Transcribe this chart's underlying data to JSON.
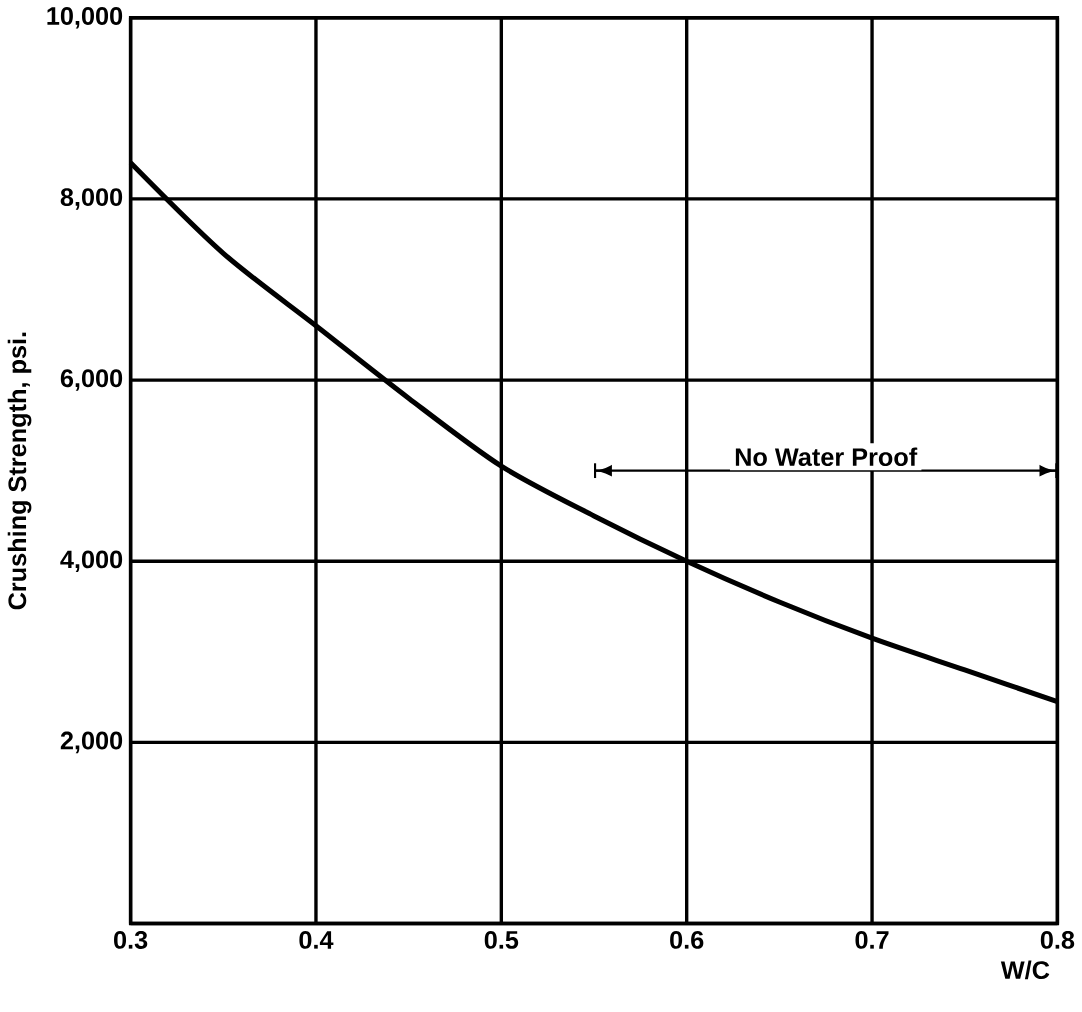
{
  "chart_data": {
    "type": "line",
    "xlabel": "W/C",
    "ylabel": "Crushing Strength, psi.",
    "x": [
      0.3,
      0.35,
      0.4,
      0.45,
      0.5,
      0.55,
      0.6,
      0.65,
      0.7,
      0.75,
      0.8
    ],
    "series": [
      {
        "color": "#000000",
        "values": [
          8400,
          7400,
          6600,
          5800,
          5050,
          4500,
          4000,
          3550,
          3150,
          2800,
          2450
        ]
      },
      {
        "type": "line",
        "color": "#000000",
        "x": [
          0.55,
          0.8
        ],
        "values": [
          5000,
          5000
        ]
      }
    ],
    "xlim": [
      0.3,
      0.8
    ],
    "xticks": [
      0.3,
      0.4,
      0.5,
      0.6,
      0.7,
      0.8
    ],
    "ylim": [
      0,
      10000
    ],
    "yticks": [
      {
        "value": 0,
        "label": null
      },
      {
        "value": 2000,
        "label": "2,000"
      },
      {
        "value": 4000,
        "label": "4,000"
      },
      {
        "value": 6000,
        "label": "6,000"
      },
      {
        "value": 8000,
        "label": "8,000"
      },
      {
        "value": 10000,
        "label": "10,000"
      }
    ],
    "grid": true,
    "annotations": [
      {
        "text": "No Water Proof",
        "x": 0.675,
        "y": 5000
      }
    ]
  }
}
